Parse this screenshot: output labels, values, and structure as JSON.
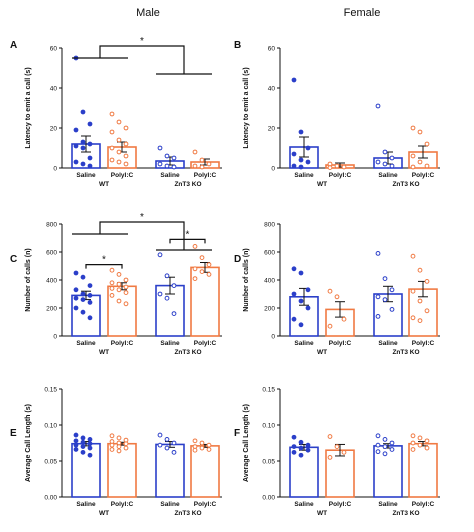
{
  "header": {
    "male": "Male",
    "female": "Female"
  },
  "colors": {
    "saline": "#2b3fc9",
    "polyic": "#f07a43",
    "axis": "#111111"
  },
  "chart_data": [
    {
      "panel": "A",
      "type": "bar",
      "ylabel": "Latency to emit a call (s)",
      "ylim": [
        0,
        60
      ],
      "yticks": [
        0,
        20,
        40,
        60
      ],
      "categories": [
        "Saline",
        "PolyI:C",
        "Saline",
        "PolyI:C"
      ],
      "groups": [
        "WT",
        "ZnT3 KO"
      ],
      "bars": [
        {
          "mean": 12,
          "sem": 4,
          "points": [
            55,
            28,
            22,
            19,
            13,
            12,
            11,
            10,
            5,
            3,
            2,
            1
          ],
          "filled": true
        },
        {
          "mean": 10.5,
          "sem": 2.5,
          "points": [
            27,
            23,
            20,
            18,
            14,
            12,
            10,
            8,
            6,
            4,
            3,
            2
          ],
          "filled": false
        },
        {
          "mean": 3.5,
          "sem": 2,
          "points": [
            10,
            6,
            5,
            2,
            1,
            0.5
          ],
          "filled": false
        },
        {
          "mean": 3,
          "sem": 1.5,
          "points": [
            8,
            4,
            2,
            1,
            0.5
          ],
          "filled": false
        }
      ],
      "significance": [
        {
          "label": "*",
          "level": "main"
        }
      ]
    },
    {
      "panel": "B",
      "type": "bar",
      "ylabel": "Latency to emit a call (s)",
      "ylim": [
        0,
        60
      ],
      "yticks": [
        0,
        20,
        40,
        60
      ],
      "categories": [
        "Saline",
        "PolyI:C",
        "Saline",
        "PolyI:C"
      ],
      "groups": [
        "WT",
        "ZnT3 KO"
      ],
      "bars": [
        {
          "mean": 10.5,
          "sem": 5,
          "points": [
            44,
            18,
            10,
            7,
            4,
            3,
            1,
            0.5
          ],
          "filled": true
        },
        {
          "mean": 1.5,
          "sem": 1,
          "points": [
            2,
            1,
            0.5,
            0.2
          ],
          "filled": false
        },
        {
          "mean": 5,
          "sem": 3,
          "points": [
            31,
            8,
            5,
            3,
            2,
            1
          ],
          "filled": false
        },
        {
          "mean": 8,
          "sem": 3,
          "points": [
            20,
            18,
            12,
            6,
            3,
            1,
            0.5
          ],
          "filled": false
        }
      ],
      "significance": []
    },
    {
      "panel": "C",
      "type": "bar",
      "ylabel": "Number of calls (n)",
      "ylim": [
        0,
        800
      ],
      "yticks": [
        0,
        200,
        400,
        600,
        800
      ],
      "categories": [
        "Saline",
        "PolyI:C",
        "Saline",
        "PolyI:C"
      ],
      "groups": [
        "WT",
        "ZnT3 KO"
      ],
      "bars": [
        {
          "mean": 290,
          "sem": 30,
          "points": [
            450,
            420,
            360,
            330,
            300,
            290,
            270,
            260,
            240,
            200,
            170,
            130
          ],
          "filled": true
        },
        {
          "mean": 355,
          "sem": 25,
          "points": [
            470,
            440,
            400,
            380,
            370,
            350,
            340,
            330,
            310,
            290,
            250,
            230
          ],
          "filled": false
        },
        {
          "mean": 360,
          "sem": 60,
          "points": [
            580,
            430,
            360,
            300,
            270,
            160
          ],
          "filled": false
        },
        {
          "mean": 490,
          "sem": 35,
          "points": [
            640,
            560,
            510,
            480,
            460,
            440,
            410
          ],
          "filled": false
        }
      ],
      "significance": [
        {
          "label": "*",
          "level": "main"
        },
        {
          "label": "*",
          "level": "WT"
        },
        {
          "label": "*",
          "level": "ZnT3 KO"
        }
      ]
    },
    {
      "panel": "D",
      "type": "bar",
      "ylabel": "Number of calls (n)",
      "ylim": [
        0,
        800
      ],
      "yticks": [
        0,
        200,
        400,
        600,
        800
      ],
      "categories": [
        "Saline",
        "PolyI:C",
        "Saline",
        "PolyI:C"
      ],
      "groups": [
        "WT",
        "ZnT3 KO"
      ],
      "bars": [
        {
          "mean": 280,
          "sem": 60,
          "points": [
            480,
            450,
            330,
            300,
            250,
            200,
            120,
            80
          ],
          "filled": true
        },
        {
          "mean": 190,
          "sem": 55,
          "points": [
            320,
            280,
            120,
            70
          ],
          "filled": false
        },
        {
          "mean": 300,
          "sem": 55,
          "points": [
            590,
            410,
            330,
            280,
            260,
            190,
            140
          ],
          "filled": false
        },
        {
          "mean": 335,
          "sem": 55,
          "points": [
            570,
            470,
            390,
            320,
            250,
            180,
            130,
            110
          ],
          "filled": false
        }
      ],
      "significance": []
    },
    {
      "panel": "E",
      "type": "bar",
      "ylabel": "Average Call Length (s)",
      "ylim": [
        0,
        0.15
      ],
      "yticks": [
        0.0,
        0.05,
        0.1,
        0.15
      ],
      "categories": [
        "Saline",
        "PolyI:C",
        "Saline",
        "PolyI:C"
      ],
      "groups": [
        "WT",
        "ZnT3 KO"
      ],
      "bars": [
        {
          "mean": 0.074,
          "sem": 0.003,
          "points": [
            0.086,
            0.082,
            0.08,
            0.078,
            0.076,
            0.074,
            0.072,
            0.07,
            0.068,
            0.066,
            0.062,
            0.058
          ],
          "filled": true
        },
        {
          "mean": 0.074,
          "sem": 0.002,
          "points": [
            0.085,
            0.082,
            0.079,
            0.077,
            0.075,
            0.074,
            0.072,
            0.07,
            0.068,
            0.066,
            0.064
          ],
          "filled": false
        },
        {
          "mean": 0.073,
          "sem": 0.004,
          "points": [
            0.086,
            0.08,
            0.075,
            0.072,
            0.068,
            0.062
          ],
          "filled": false
        },
        {
          "mean": 0.071,
          "sem": 0.002,
          "points": [
            0.078,
            0.075,
            0.072,
            0.07,
            0.068,
            0.066,
            0.065
          ],
          "filled": false
        }
      ],
      "significance": []
    },
    {
      "panel": "F",
      "type": "bar",
      "ylabel": "Average Call Length (s)",
      "ylim": [
        0,
        0.15
      ],
      "yticks": [
        0.0,
        0.05,
        0.1,
        0.15
      ],
      "categories": [
        "Saline",
        "PolyI:C",
        "Saline",
        "PolyI:C"
      ],
      "groups": [
        "WT",
        "ZnT3 KO"
      ],
      "bars": [
        {
          "mean": 0.069,
          "sem": 0.004,
          "points": [
            0.083,
            0.076,
            0.072,
            0.07,
            0.068,
            0.065,
            0.062,
            0.058
          ],
          "filled": true
        },
        {
          "mean": 0.065,
          "sem": 0.008,
          "points": [
            0.084,
            0.07,
            0.062,
            0.055
          ],
          "filled": false
        },
        {
          "mean": 0.071,
          "sem": 0.003,
          "points": [
            0.085,
            0.08,
            0.075,
            0.072,
            0.07,
            0.066,
            0.063,
            0.06
          ],
          "filled": false
        },
        {
          "mean": 0.074,
          "sem": 0.003,
          "points": [
            0.085,
            0.082,
            0.078,
            0.075,
            0.072,
            0.068,
            0.066
          ],
          "filled": false
        }
      ],
      "significance": []
    }
  ]
}
